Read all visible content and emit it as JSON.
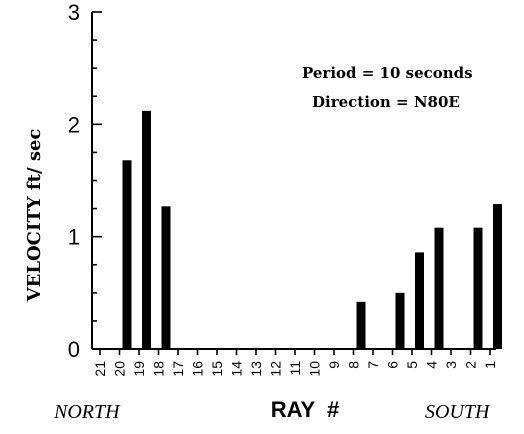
{
  "chart_data": {
    "type": "bar",
    "title": "",
    "xlabel": "RAY  #",
    "ylabel": "VELOCITY  ft/  sec",
    "ylim": [
      0,
      3
    ],
    "yticks": [
      "0",
      "1",
      "2",
      "3"
    ],
    "categories": [
      "21",
      "20",
      "19",
      "18",
      "17",
      "16",
      "15",
      "14",
      "13",
      "12",
      "11",
      "10",
      "9",
      "8",
      "7",
      "6",
      "5",
      "4",
      "3",
      "2",
      "1"
    ],
    "values": [
      0,
      1.68,
      2.12,
      1.27,
      0,
      0,
      0,
      0,
      0,
      0,
      0,
      0,
      0,
      0.42,
      0,
      0.5,
      0.86,
      1.08,
      0,
      1.08,
      1.29
    ],
    "left_label": "NORTH",
    "right_label": "SOUTH",
    "annotations": [
      "Period  =  10  seconds",
      "Direction  =  N80E"
    ],
    "bar_color": "#000000",
    "grid": false,
    "legend": "none"
  }
}
